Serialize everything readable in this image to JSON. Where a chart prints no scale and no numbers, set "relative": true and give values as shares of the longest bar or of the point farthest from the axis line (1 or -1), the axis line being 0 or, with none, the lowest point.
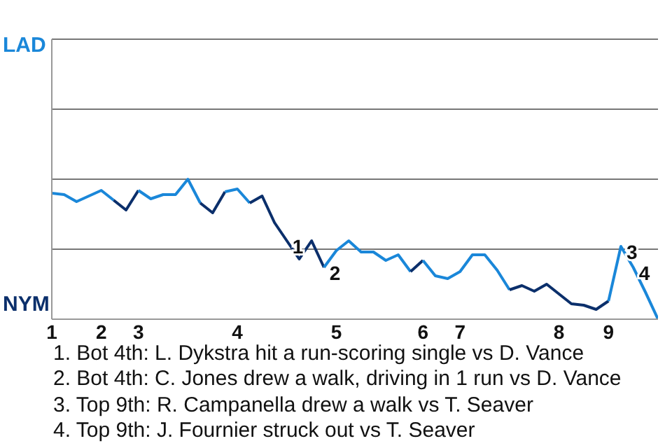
{
  "chart_data": {
    "type": "line",
    "relative": true,
    "line_style": "solid",
    "ref_lines": [
      {
        "axis": "y",
        "value": 0.5,
        "color": "#777777"
      },
      {
        "axis": "y",
        "value": 1,
        "color": "#777777"
      },
      {
        "axis": "y",
        "value": 1.5,
        "color": "#777777"
      },
      {
        "axis": "y",
        "value": 2,
        "color": "#777777"
      }
    ],
    "categories": [
      "1",
      null,
      null,
      null,
      "2",
      null,
      null,
      "3",
      null,
      null,
      null,
      null,
      null,
      null,
      null,
      "4",
      null,
      null,
      null,
      null,
      null,
      null,
      null,
      "5",
      null,
      null,
      null,
      null,
      null,
      null,
      "6",
      null,
      null,
      "7",
      null,
      null,
      null,
      null,
      null,
      null,
      null,
      "8",
      null,
      null,
      null,
      "9",
      null,
      null,
      null,
      null
    ],
    "series": [
      {
        "color": "#1a87d9",
        "values": [
          0.9,
          0.89,
          0.84,
          0.88,
          0.92,
          0.85,
          null,
          null,
          null,
          null,
          null,
          null,
          null,
          null,
          null,
          null,
          null,
          null,
          null,
          null,
          null,
          null,
          null,
          null,
          null,
          null,
          null,
          null,
          null,
          null,
          null,
          null,
          null,
          null,
          null,
          null,
          null,
          null,
          null,
          null,
          null,
          null,
          null,
          null,
          null,
          null,
          null,
          null,
          null,
          null
        ]
      },
      {
        "color": "#0b2f6b",
        "values": [
          null,
          null,
          null,
          null,
          null,
          0.85,
          0.78,
          0.92,
          null,
          null,
          null,
          null,
          null,
          null,
          null,
          null,
          null,
          null,
          null,
          null,
          null,
          null,
          null,
          null,
          null,
          null,
          null,
          null,
          null,
          null,
          null,
          null,
          null,
          null,
          null,
          null,
          null,
          null,
          null,
          null,
          null,
          null,
          null,
          null,
          null,
          null,
          null,
          null,
          null,
          null
        ]
      },
      {
        "color": "#1a87d9",
        "values": [
          null,
          null,
          null,
          null,
          null,
          null,
          null,
          0.92,
          0.86,
          0.89,
          0.89,
          1,
          0.83,
          null,
          null,
          null,
          null,
          null,
          null,
          null,
          null,
          null,
          null,
          null,
          null,
          null,
          null,
          null,
          null,
          null,
          null,
          null,
          null,
          null,
          null,
          null,
          null,
          null,
          null,
          null,
          null,
          null,
          null,
          null,
          null,
          null,
          null,
          null,
          null,
          null
        ]
      },
      {
        "color": "#0b2f6b",
        "values": [
          null,
          null,
          null,
          null,
          null,
          null,
          null,
          null,
          null,
          null,
          null,
          null,
          0.83,
          0.76,
          0.91,
          null,
          null,
          null,
          null,
          null,
          null,
          null,
          null,
          null,
          null,
          null,
          null,
          null,
          null,
          null,
          null,
          null,
          null,
          null,
          null,
          null,
          null,
          null,
          null,
          null,
          null,
          null,
          null,
          null,
          null,
          null,
          null,
          null,
          null,
          null
        ]
      },
      {
        "color": "#1a87d9",
        "values": [
          null,
          null,
          null,
          null,
          null,
          null,
          null,
          null,
          null,
          null,
          null,
          null,
          null,
          null,
          0.91,
          0.93,
          0.83,
          null,
          null,
          null,
          null,
          null,
          null,
          null,
          null,
          null,
          null,
          null,
          null,
          null,
          null,
          null,
          null,
          null,
          null,
          null,
          null,
          null,
          null,
          null,
          null,
          null,
          null,
          null,
          null,
          null,
          null,
          null,
          null,
          null
        ]
      },
      {
        "color": "#0b2f6b",
        "values": [
          null,
          null,
          null,
          null,
          null,
          null,
          null,
          null,
          null,
          null,
          null,
          null,
          null,
          null,
          null,
          null,
          0.83,
          0.88,
          0.69,
          0.56,
          0.43,
          0.56,
          0.37,
          null,
          null,
          null,
          null,
          null,
          null,
          null,
          null,
          null,
          null,
          null,
          null,
          null,
          null,
          null,
          null,
          null,
          null,
          null,
          null,
          null,
          null,
          null,
          null,
          null,
          null,
          null
        ]
      },
      {
        "color": "#1a87d9",
        "values": [
          null,
          null,
          null,
          null,
          null,
          null,
          null,
          null,
          null,
          null,
          null,
          null,
          null,
          null,
          null,
          null,
          null,
          null,
          null,
          null,
          null,
          null,
          0.37,
          0.49,
          0.56,
          0.48,
          0.48,
          0.42,
          0.46,
          0.34,
          null,
          null,
          null,
          null,
          null,
          null,
          null,
          null,
          null,
          null,
          null,
          null,
          null,
          null,
          null,
          null,
          null,
          null,
          null,
          null
        ]
      },
      {
        "color": "#0b2f6b",
        "values": [
          null,
          null,
          null,
          null,
          null,
          null,
          null,
          null,
          null,
          null,
          null,
          null,
          null,
          null,
          null,
          null,
          null,
          null,
          null,
          null,
          null,
          null,
          null,
          null,
          null,
          null,
          null,
          null,
          null,
          0.34,
          0.42,
          null,
          null,
          null,
          null,
          null,
          null,
          null,
          null,
          null,
          null,
          null,
          null,
          null,
          null,
          null,
          null,
          null,
          null,
          null
        ]
      },
      {
        "color": "#1a87d9",
        "values": [
          null,
          null,
          null,
          null,
          null,
          null,
          null,
          null,
          null,
          null,
          null,
          null,
          null,
          null,
          null,
          null,
          null,
          null,
          null,
          null,
          null,
          null,
          null,
          null,
          null,
          null,
          null,
          null,
          null,
          null,
          0.42,
          0.31,
          0.29,
          0.34,
          0.46,
          0.46,
          0.35,
          0.21,
          null,
          null,
          null,
          null,
          null,
          null,
          null,
          null,
          null,
          null,
          null,
          null
        ]
      },
      {
        "color": "#0b2f6b",
        "values": [
          null,
          null,
          null,
          null,
          null,
          null,
          null,
          null,
          null,
          null,
          null,
          null,
          null,
          null,
          null,
          null,
          null,
          null,
          null,
          null,
          null,
          null,
          null,
          null,
          null,
          null,
          null,
          null,
          null,
          null,
          null,
          null,
          null,
          null,
          null,
          null,
          null,
          0.21,
          0.24,
          0.2,
          0.25,
          0.18,
          0.11,
          0.1,
          0.07,
          0.13,
          null,
          null,
          null,
          null
        ]
      },
      {
        "color": "#1a87d9",
        "values": [
          null,
          null,
          null,
          null,
          null,
          null,
          null,
          null,
          null,
          null,
          null,
          null,
          null,
          null,
          null,
          null,
          null,
          null,
          null,
          null,
          null,
          null,
          null,
          null,
          null,
          null,
          null,
          null,
          null,
          null,
          null,
          null,
          null,
          null,
          null,
          null,
          null,
          null,
          null,
          null,
          null,
          null,
          null,
          null,
          null,
          0.13,
          0.52,
          0.37,
          0.19,
          0
        ]
      }
    ],
    "annotations": [
      "LAD",
      "NYM",
      "1",
      "2",
      "3",
      "4",
      "1. Bot 4th: L. Dykstra hit a run-scoring single vs D. Vance",
      "2. Bot 4th: C. Jones drew a walk, driving in 1 run vs D. Vance",
      "3. Top 9th: R. Campanella drew a walk vs T. Seaver",
      "4. Top 9th: J. Fournier struck out vs T. Seaver"
    ]
  }
}
